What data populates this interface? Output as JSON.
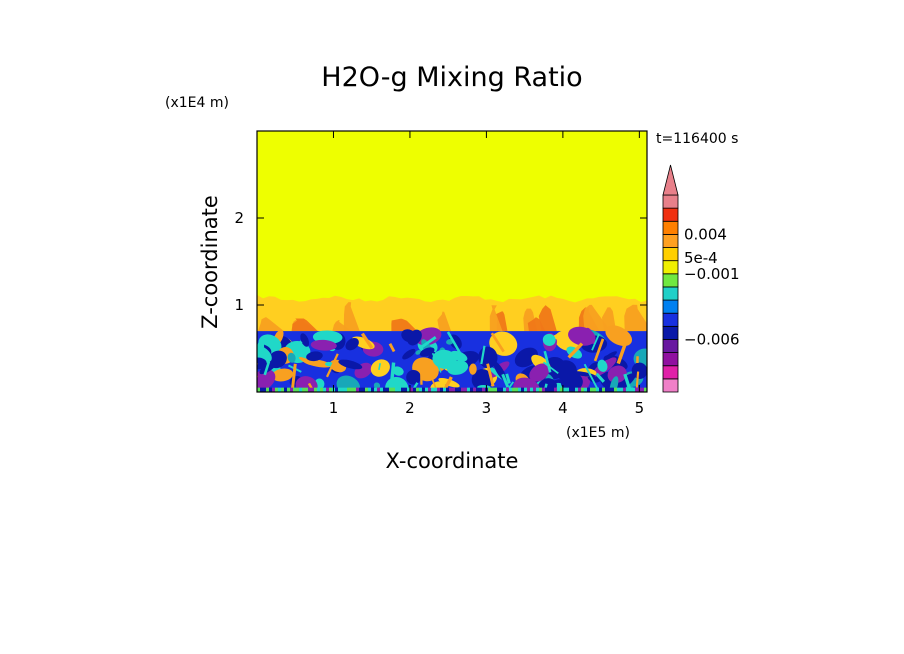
{
  "chart_data": {
    "type": "heatmap",
    "title": "H2O-g Mixing Ratio",
    "xlabel": "X-coordinate",
    "ylabel": "Z-coordinate",
    "x_unit": "(x1E5 m)",
    "y_unit": "(x1E4 m)",
    "time_label": "t=116400 s",
    "xlim": [
      0,
      5.1
    ],
    "ylim": [
      0,
      3.0
    ],
    "x_ticks": [
      {
        "value": 1,
        "label": "1"
      },
      {
        "value": 2,
        "label": "2"
      },
      {
        "value": 3,
        "label": "3"
      },
      {
        "value": 4,
        "label": "4"
      },
      {
        "value": 5,
        "label": "5"
      }
    ],
    "y_ticks": [
      {
        "value": 1,
        "label": "1"
      },
      {
        "value": 2,
        "label": "2"
      }
    ],
    "field": {
      "upper_value_color": "#eeff00",
      "transition_top": 1.05,
      "boundary_layer_top": 0.7,
      "surface_layer": 0.05
    },
    "colorbar": {
      "levels": [
        {
          "color": "#f080c8"
        },
        {
          "color": "#e020a8"
        },
        {
          "color": "#9010a0"
        },
        {
          "color": "#6818a0"
        },
        {
          "color": "#0a18a8"
        },
        {
          "color": "#1830e0"
        },
        {
          "color": "#0080f0"
        },
        {
          "color": "#20d0c8"
        },
        {
          "color": "#70e840"
        },
        {
          "color": "#f0f000"
        },
        {
          "color": "#ffcf00"
        },
        {
          "color": "#ffa020"
        },
        {
          "color": "#ff8000"
        },
        {
          "color": "#f03010"
        },
        {
          "color": "#e8808a"
        }
      ],
      "labels": [
        {
          "text": "0.004",
          "level": 12.0
        },
        {
          "text": "5e-4",
          "level": 10.2
        },
        {
          "text": "−0.001",
          "level": 9.0
        },
        {
          "text": "−0.006",
          "level": 4.0
        }
      ],
      "extend": "max"
    },
    "colors": {
      "yellow": "#eeff00",
      "light_orange": "#ffcf20",
      "orange": "#f8a020",
      "dark_orange": "#f07818",
      "cyan": "#20d8c8",
      "teal": "#18a8b8",
      "blue": "#1830e0",
      "navy": "#0a18a8",
      "purple": "#8a20b0",
      "green": "#58e058"
    }
  }
}
